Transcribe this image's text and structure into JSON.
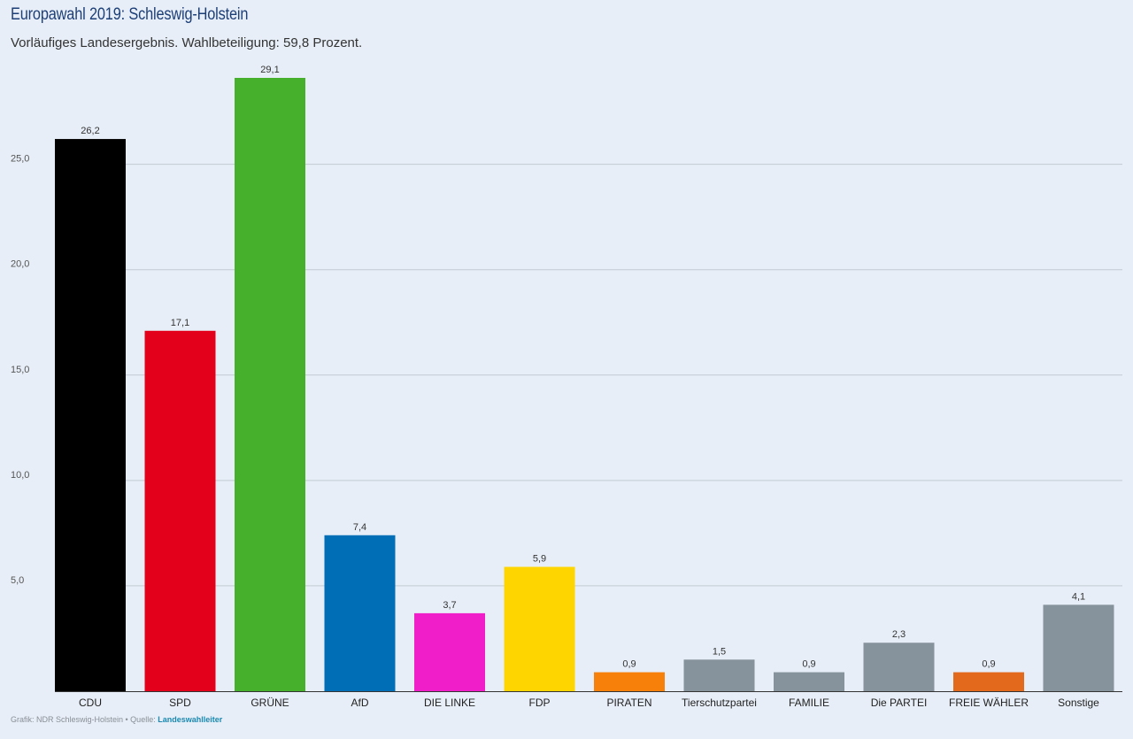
{
  "chart_data": {
    "type": "bar",
    "title": "Europawahl 2019: Schleswig-Holstein",
    "subtitle": "Vorläufiges Landesergebnis. Wahlbeteiligung: 59,8 Prozent.",
    "categories": [
      "CDU",
      "SPD",
      "GRÜNE",
      "AfD",
      "DIE LINKE",
      "FDP",
      "PIRATEN",
      "Tierschutzpartei",
      "FAMILIE",
      "Die PARTEI",
      "FREIE WÄHLER",
      "Sonstige"
    ],
    "values": [
      26.2,
      17.1,
      29.1,
      7.4,
      3.7,
      5.9,
      0.9,
      1.5,
      0.9,
      2.3,
      0.9,
      4.1
    ],
    "value_labels": [
      "26,2",
      "17,1",
      "29,1",
      "7,4",
      "3,7",
      "5,9",
      "0,9",
      "1,5",
      "0,9",
      "2,3",
      "0,9",
      "4,1"
    ],
    "colors": [
      "#000000",
      "#e2001a",
      "#46b02c",
      "#006db7",
      "#f01ec8",
      "#ffd500",
      "#f7800b",
      "#86929c",
      "#86929c",
      "#86929c",
      "#e36a1c",
      "#86929c"
    ],
    "yticks": [
      5,
      10,
      15,
      20,
      25
    ],
    "ytick_labels": [
      "5,0",
      "10,0",
      "15,0",
      "20,0",
      "25,0"
    ],
    "ylim": [
      0,
      29.1
    ],
    "grid": true,
    "xlabel": "",
    "ylabel": ""
  },
  "footer": {
    "credit": "Grafik: NDR Schleswig-Holstein • Quelle:",
    "source_link": "Landeswahlleiter"
  }
}
